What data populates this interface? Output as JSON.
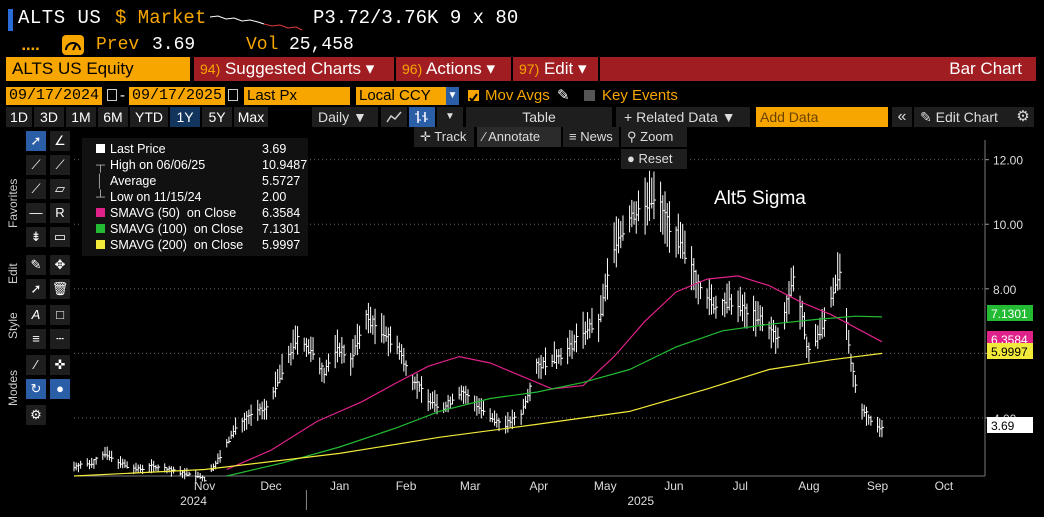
{
  "header": {
    "ticker": "ALTS US",
    "market": "$ Market",
    "quote": "P3.72/3.76K  9 x 80",
    "prev_label": "Prev",
    "prev_value": "3.69",
    "vol_label": "Vol",
    "vol_value": "25,458"
  },
  "menu": {
    "security": "ALTS US Equity",
    "suggested_num": "94)",
    "suggested_label": "Suggested Charts",
    "actions_num": "96)",
    "actions_label": "Actions",
    "edit_num": "97)",
    "edit_label": "Edit",
    "chart_type": "Bar Chart",
    "dropdown_glyph": "▾"
  },
  "settings": {
    "start_date": "09/17/2024",
    "end_date": "09/17/2025",
    "price_field": "Last Px",
    "currency": "Local CCY",
    "mov_avgs": "Mov Avgs",
    "key_events": "Key Events",
    "dash": "-"
  },
  "periods": [
    "1D",
    "3D",
    "1M",
    "6M",
    "YTD",
    "1Y",
    "5Y",
    "Max"
  ],
  "active_period": "1Y",
  "toolbar_top": {
    "frequency": "Daily",
    "table": "Table",
    "related_data": "Related Data",
    "add_data_placeholder": "Add Data",
    "edit_chart": "Edit Chart",
    "track": "Track",
    "annotate": "Annotate",
    "news": "News",
    "zoom": "Zoom",
    "reset": "Reset"
  },
  "side_labels": {
    "favorites": "Favorites",
    "edit": "Edit",
    "style": "Style",
    "modes": "Modes"
  },
  "legend": [
    {
      "name": "Last Price",
      "value": "3.69",
      "color": "#ffffff"
    },
    {
      "name": "High on 06/06/25",
      "value": "10.9487",
      "color": ""
    },
    {
      "name": "Average",
      "value": "5.5727",
      "color": ""
    },
    {
      "name": "Low on 11/15/24",
      "value": "2.00",
      "color": ""
    },
    {
      "name": "SMAVG (50)  on Close",
      "value": "6.3584",
      "color": "#e0218a"
    },
    {
      "name": "SMAVG (100)  on Close",
      "value": "7.1301",
      "color": "#22bb33"
    },
    {
      "name": "SMAVG (200)  on Close",
      "value": "5.9997",
      "color": "#f2ea3a"
    }
  ],
  "chart_data": {
    "type": "line",
    "title": "Alt5 Sigma",
    "y_ticks": [
      4.0,
      6.0,
      8.0,
      10.0,
      12.0
    ],
    "y_tick_labels": [
      "4.00",
      "6.00",
      "8.00",
      "10.00",
      "12.00"
    ],
    "ylim": [
      2.2,
      12.3
    ],
    "grid": true,
    "x_month_labels": [
      "Nov",
      "Dec",
      "Jan",
      "Feb",
      "Mar",
      "Apr",
      "May",
      "Jun",
      "Jul",
      "Aug",
      "Sep",
      "Oct"
    ],
    "x_year_labels": [
      "2024",
      "2025"
    ],
    "end_labels": [
      "7.1301",
      "6.3584",
      "5.9997",
      "3.69"
    ],
    "series": [
      {
        "name": "Last Price",
        "color": "#ffffff",
        "x": [
          "2024-09-17",
          "2024-09-25",
          "2024-10-01",
          "2024-10-08",
          "2024-10-15",
          "2024-10-22",
          "2024-10-29",
          "2024-11-05",
          "2024-11-12",
          "2024-11-15",
          "2024-11-22",
          "2024-11-29",
          "2024-12-06",
          "2024-12-13",
          "2024-12-20",
          "2024-12-27",
          "2025-01-03",
          "2025-01-08",
          "2025-01-14",
          "2025-01-20",
          "2025-01-27",
          "2025-02-03",
          "2025-02-10",
          "2025-02-17",
          "2025-02-24",
          "2025-03-03",
          "2025-03-10",
          "2025-03-17",
          "2025-03-24",
          "2025-03-31",
          "2025-04-07",
          "2025-04-14",
          "2025-04-21",
          "2025-04-28",
          "2025-05-05",
          "2025-05-12",
          "2025-05-19",
          "2025-05-26",
          "2025-06-02",
          "2025-06-06",
          "2025-06-13",
          "2025-06-20",
          "2025-06-27",
          "2025-07-04",
          "2025-07-11",
          "2025-07-18",
          "2025-07-25",
          "2025-08-01",
          "2025-08-08",
          "2025-08-15",
          "2025-08-22",
          "2025-08-26",
          "2025-08-29",
          "2025-09-03",
          "2025-09-08",
          "2025-09-12",
          "2025-09-17"
        ],
        "y": [
          2.5,
          2.6,
          2.9,
          2.6,
          2.4,
          2.5,
          2.4,
          2.3,
          2.2,
          2.1,
          2.8,
          3.7,
          4.1,
          4.3,
          5.5,
          6.5,
          6.0,
          5.4,
          6.2,
          5.8,
          7.1,
          6.7,
          6.2,
          5.2,
          4.6,
          4.3,
          4.8,
          4.5,
          4.0,
          3.8,
          4.1,
          5.6,
          5.8,
          6.1,
          6.7,
          6.9,
          9.4,
          10.2,
          10.6,
          10.9,
          10.0,
          9.1,
          8.0,
          7.4,
          7.6,
          7.3,
          7.0,
          6.4,
          8.4,
          6.0,
          7.0,
          8.0,
          8.6,
          5.6,
          4.3,
          3.9,
          3.69
        ]
      },
      {
        "name": "SMAVG (50)  on Close",
        "color": "#e0218a",
        "x": [
          "2024-11-25",
          "2024-12-15",
          "2025-01-05",
          "2025-01-25",
          "2025-02-10",
          "2025-02-24",
          "2025-03-10",
          "2025-03-24",
          "2025-04-07",
          "2025-04-21",
          "2025-05-05",
          "2025-05-19",
          "2025-06-02",
          "2025-06-16",
          "2025-06-30",
          "2025-07-14",
          "2025-07-28",
          "2025-08-11",
          "2025-08-25",
          "2025-09-17"
        ],
        "y": [
          2.4,
          3.0,
          3.9,
          4.5,
          5.1,
          5.6,
          5.9,
          5.7,
          5.3,
          4.9,
          5.0,
          5.9,
          7.0,
          7.9,
          8.3,
          8.4,
          8.1,
          7.6,
          7.2,
          6.3584
        ]
      },
      {
        "name": "SMAVG (100)  on Close",
        "color": "#22bb33",
        "x": [
          "2024-11-25",
          "2024-12-20",
          "2025-01-15",
          "2025-02-10",
          "2025-03-01",
          "2025-03-24",
          "2025-04-14",
          "2025-05-05",
          "2025-05-26",
          "2025-06-16",
          "2025-07-07",
          "2025-07-28",
          "2025-08-18",
          "2025-09-05",
          "2025-09-17"
        ],
        "y": [
          2.2,
          2.6,
          3.1,
          3.7,
          4.2,
          4.6,
          4.8,
          5.1,
          5.5,
          6.2,
          6.7,
          6.9,
          7.05,
          7.15,
          7.1301
        ]
      },
      {
        "name": "SMAVG (200)  on Close",
        "color": "#f2ea3a",
        "x": [
          "2024-09-17",
          "2024-11-15",
          "2025-01-15",
          "2025-03-01",
          "2025-04-14",
          "2025-05-26",
          "2025-06-30",
          "2025-07-28",
          "2025-08-25",
          "2025-09-17"
        ],
        "y": [
          2.2,
          2.4,
          2.9,
          3.4,
          3.8,
          4.2,
          4.9,
          5.5,
          5.8,
          5.9997
        ]
      }
    ]
  }
}
